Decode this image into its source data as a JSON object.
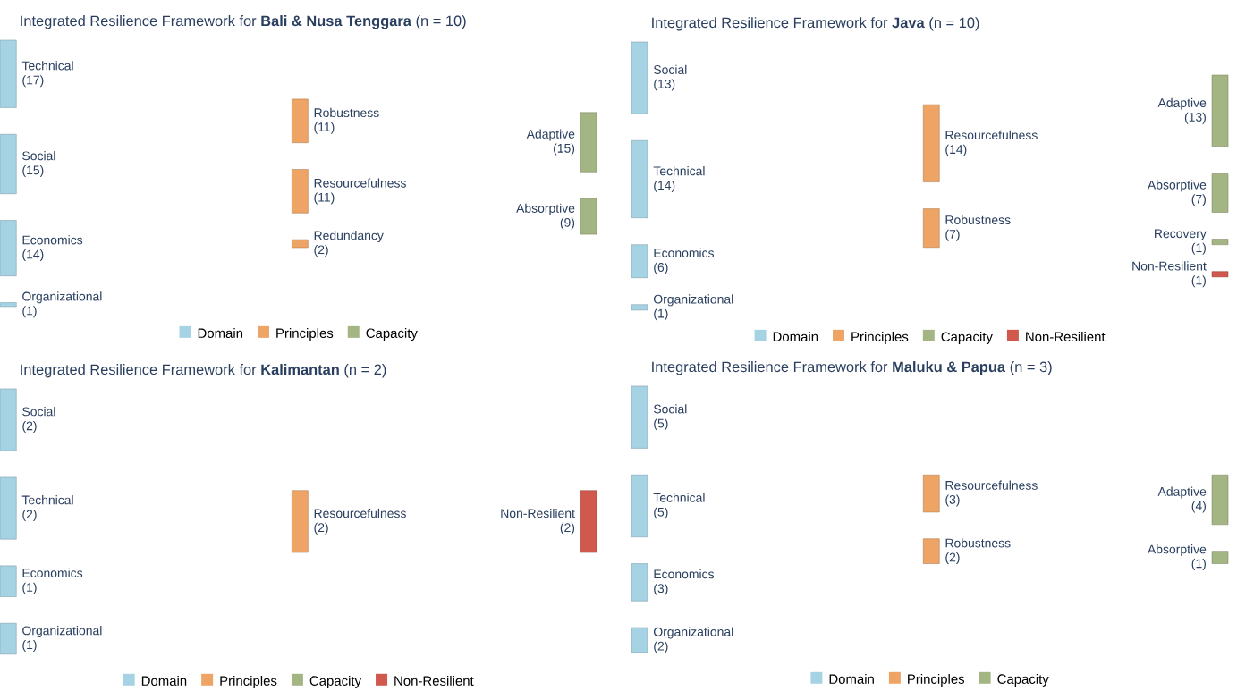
{
  "chart_data": [
    {
      "type": "other",
      "title": "Integrated Resilience Framework for **Bali & Nusa Tenggara** (n = 10)",
      "legend": "bottom",
      "categories": [
        "Technical",
        "Social",
        "Economics",
        "Organizational",
        "Robustness",
        "Resourcefulness",
        "Redundancy",
        "Adaptive",
        "Absorptive"
      ],
      "series": [
        {
          "name": "Domain",
          "color": "#a6d3e3",
          "values": [
            17,
            15,
            14,
            1,
            null,
            null,
            null,
            null,
            null
          ],
          "value_labels": [
            "(17)",
            "(15)",
            "(14)",
            "(1)",
            null,
            null,
            null,
            null,
            null
          ]
        },
        {
          "name": "Principles",
          "color": "#eda465",
          "values": [
            null,
            null,
            null,
            null,
            11,
            11,
            2,
            null,
            null
          ],
          "value_labels": [
            null,
            null,
            null,
            null,
            "(11)",
            "(11)",
            "(2)",
            null,
            null
          ]
        },
        {
          "name": "Capacity",
          "color": "#a4b584",
          "values": [
            null,
            null,
            null,
            null,
            null,
            null,
            null,
            15,
            9
          ],
          "value_labels": [
            null,
            null,
            null,
            null,
            null,
            null,
            null,
            "(15)",
            "(9)"
          ]
        }
      ]
    },
    {
      "type": "other",
      "title": "Integrated Resilience Framework for **Java** (n = 10)",
      "legend": "bottom",
      "categories": [
        "Social",
        "Technical",
        "Economics",
        "Organizational",
        "Resourcefulness",
        "Robustness",
        "Adaptive",
        "Absorptive",
        "Recovery",
        "Non-Resilient"
      ],
      "series": [
        {
          "name": "Domain",
          "color": "#a6d3e3",
          "values": [
            13,
            14,
            6,
            1,
            null,
            null,
            null,
            null,
            null,
            null
          ],
          "value_labels": [
            "(13)",
            "(14)",
            "(6)",
            "(1)",
            null,
            null,
            null,
            null,
            null,
            null
          ]
        },
        {
          "name": "Principles",
          "color": "#eda465",
          "values": [
            null,
            null,
            null,
            null,
            14,
            7,
            null,
            null,
            null,
            null
          ],
          "value_labels": [
            null,
            null,
            null,
            null,
            "(14)",
            "(7)",
            null,
            null,
            null,
            null
          ]
        },
        {
          "name": "Capacity",
          "color": "#a4b584",
          "values": [
            null,
            null,
            null,
            null,
            null,
            null,
            13,
            7,
            1,
            null
          ],
          "value_labels": [
            null,
            null,
            null,
            null,
            null,
            null,
            "(13)",
            "(7)",
            "(1)",
            null
          ]
        },
        {
          "name": "Non-Resilient",
          "color": "#d0584c",
          "values": [
            null,
            null,
            null,
            null,
            null,
            null,
            null,
            null,
            null,
            1
          ],
          "value_labels": [
            null,
            null,
            null,
            null,
            null,
            null,
            null,
            null,
            null,
            "(1)"
          ]
        }
      ]
    },
    {
      "type": "other",
      "title": "Integrated Resilience Framework for **Kalimantan** (n = 2)",
      "legend": "bottom",
      "categories": [
        "Social",
        "Technical",
        "Economics",
        "Organizational",
        "Resourcefulness",
        "Non-Resilient"
      ],
      "series": [
        {
          "name": "Domain",
          "color": "#a6d3e3",
          "values": [
            2,
            2,
            1,
            1,
            null,
            null
          ],
          "value_labels": [
            "(2)",
            "(2)",
            "(1)",
            "(1)",
            null,
            null
          ]
        },
        {
          "name": "Principles",
          "color": "#eda465",
          "values": [
            null,
            null,
            null,
            null,
            2,
            null
          ],
          "value_labels": [
            null,
            null,
            null,
            null,
            "(2)",
            null
          ]
        },
        {
          "name": "Capacity",
          "color": "#a4b584",
          "values": [
            null,
            null,
            null,
            null,
            null,
            null
          ]
        },
        {
          "name": "Non-Resilient",
          "color": "#d0584c",
          "values": [
            null,
            null,
            null,
            null,
            null,
            2
          ],
          "value_labels": [
            null,
            null,
            null,
            null,
            null,
            "(2)"
          ]
        }
      ]
    },
    {
      "type": "other",
      "title": "Integrated Resilience Framework for **Maluku & Papua** (n = 3)",
      "legend": "bottom",
      "categories": [
        "Social",
        "Technical",
        "Economics",
        "Organizational",
        "Resourcefulness",
        "Robustness",
        "Adaptive",
        "Absorptive"
      ],
      "series": [
        {
          "name": "Domain",
          "color": "#a6d3e3",
          "values": [
            5,
            5,
            3,
            2,
            null,
            null,
            null,
            null
          ],
          "value_labels": [
            "(5)",
            "(5)",
            "(3)",
            "(2)",
            null,
            null,
            null,
            null
          ]
        },
        {
          "name": "Principles",
          "color": "#eda465",
          "values": [
            null,
            null,
            null,
            null,
            3,
            2,
            null,
            null
          ],
          "value_labels": [
            null,
            null,
            null,
            null,
            "(3)",
            "(2)",
            null,
            null
          ]
        },
        {
          "name": "Capacity",
          "color": "#a4b584",
          "values": [
            null,
            null,
            null,
            null,
            null,
            null,
            4,
            1
          ],
          "value_labels": [
            null,
            null,
            null,
            null,
            null,
            null,
            "(4)",
            "(1)"
          ]
        }
      ]
    }
  ]
}
